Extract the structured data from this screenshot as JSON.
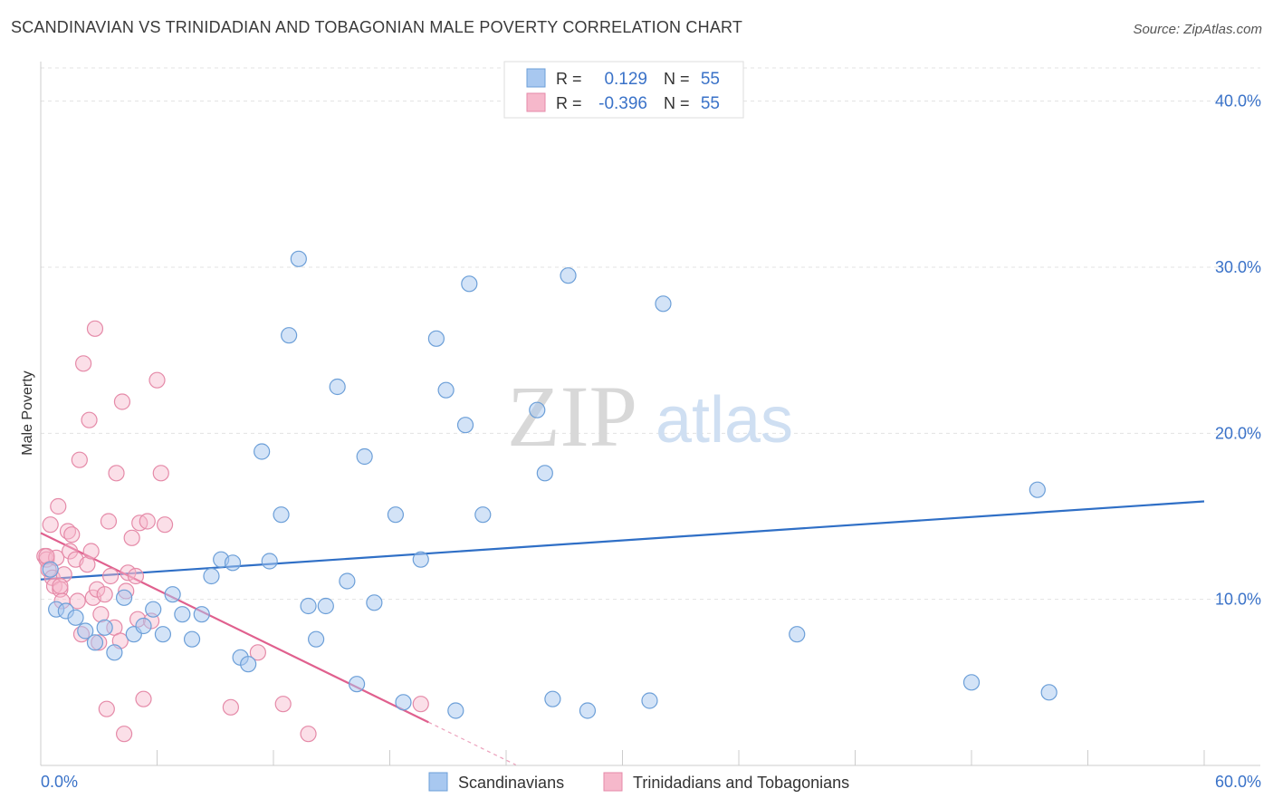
{
  "header": {
    "title": "SCANDINAVIAN VS TRINIDADIAN AND TOBAGONIAN MALE POVERTY CORRELATION CHART",
    "source": "Source: ZipAtlas.com"
  },
  "watermark": {
    "zip": "ZIP",
    "atlas": "atlas"
  },
  "legend_stats": [
    {
      "r_label": "R =",
      "r_value": "0.129",
      "n_label": "N =",
      "n_value": "55"
    },
    {
      "r_label": "R =",
      "r_value": "-0.396",
      "n_label": "N =",
      "n_value": "55"
    }
  ],
  "colors": {
    "blue_fill": "#a8c8f0",
    "blue_stroke": "#6c9fd8",
    "blue_line": "#2f6fc6",
    "pink_fill": "#f6b8cb",
    "pink_stroke": "#e58aa8",
    "pink_line": "#e0608e",
    "value_text": "#3a72c8"
  },
  "chart_data": {
    "type": "scatter",
    "ylabel": "Male Poverty",
    "xlim": [
      0,
      60
    ],
    "ylim": [
      0,
      42
    ],
    "x_tick_labels": [
      "0.0%",
      "60.0%"
    ],
    "y_ticks": [
      10,
      20,
      30,
      40
    ],
    "y_tick_labels": [
      "10.0%",
      "20.0%",
      "30.0%",
      "40.0%"
    ],
    "grid": true,
    "legend_position": "bottom",
    "series": [
      {
        "name": "Scandinavians",
        "color": "#a8c8f0",
        "trend": {
          "x": [
            0,
            60
          ],
          "y": [
            11.2,
            15.9
          ]
        },
        "points": [
          [
            0.5,
            11.8
          ],
          [
            0.8,
            9.4
          ],
          [
            1.3,
            9.3
          ],
          [
            1.8,
            8.9
          ],
          [
            2.3,
            8.1
          ],
          [
            2.8,
            7.4
          ],
          [
            3.3,
            8.3
          ],
          [
            3.8,
            6.8
          ],
          [
            4.3,
            10.1
          ],
          [
            4.8,
            7.9
          ],
          [
            5.3,
            8.4
          ],
          [
            5.8,
            9.4
          ],
          [
            6.3,
            7.9
          ],
          [
            6.8,
            10.3
          ],
          [
            7.3,
            9.1
          ],
          [
            7.8,
            7.6
          ],
          [
            8.3,
            9.1
          ],
          [
            8.8,
            11.4
          ],
          [
            9.3,
            12.4
          ],
          [
            9.9,
            12.2
          ],
          [
            10.3,
            6.5
          ],
          [
            10.7,
            6.1
          ],
          [
            11.4,
            18.9
          ],
          [
            11.8,
            12.3
          ],
          [
            12.4,
            15.1
          ],
          [
            12.8,
            25.9
          ],
          [
            13.3,
            30.5
          ],
          [
            13.8,
            9.6
          ],
          [
            14.2,
            7.6
          ],
          [
            14.7,
            9.6
          ],
          [
            15.3,
            22.8
          ],
          [
            15.8,
            11.1
          ],
          [
            16.3,
            4.9
          ],
          [
            16.7,
            18.6
          ],
          [
            17.2,
            9.8
          ],
          [
            18.3,
            15.1
          ],
          [
            18.7,
            3.8
          ],
          [
            19.6,
            12.4
          ],
          [
            20.4,
            25.7
          ],
          [
            20.9,
            22.6
          ],
          [
            21.4,
            3.3
          ],
          [
            21.9,
            20.5
          ],
          [
            22.1,
            29.0
          ],
          [
            22.8,
            15.1
          ],
          [
            25.6,
            21.4
          ],
          [
            26.0,
            17.6
          ],
          [
            26.4,
            4.0
          ],
          [
            27.2,
            29.5
          ],
          [
            28.2,
            3.3
          ],
          [
            31.4,
            3.9
          ],
          [
            32.1,
            27.8
          ],
          [
            39.0,
            7.9
          ],
          [
            48.0,
            5.0
          ],
          [
            51.4,
            16.6
          ],
          [
            52.0,
            4.4
          ]
        ]
      },
      {
        "name": "Trinidadians and Tobagonians",
        "color": "#f6b8cb",
        "trend": {
          "x": [
            0,
            20
          ],
          "y": [
            14.0,
            2.6
          ]
        },
        "points": [
          [
            0.2,
            12.6
          ],
          [
            0.3,
            12.4
          ],
          [
            0.4,
            11.8
          ],
          [
            0.5,
            14.5
          ],
          [
            0.6,
            11.3
          ],
          [
            0.7,
            10.8
          ],
          [
            0.8,
            12.5
          ],
          [
            0.9,
            15.6
          ],
          [
            1.0,
            10.6
          ],
          [
            1.1,
            9.9
          ],
          [
            1.2,
            11.5
          ],
          [
            1.4,
            14.1
          ],
          [
            1.5,
            12.9
          ],
          [
            1.6,
            13.9
          ],
          [
            1.8,
            12.4
          ],
          [
            1.9,
            9.9
          ],
          [
            2.0,
            18.4
          ],
          [
            2.1,
            7.9
          ],
          [
            2.2,
            24.2
          ],
          [
            2.4,
            12.1
          ],
          [
            2.5,
            20.8
          ],
          [
            2.6,
            12.9
          ],
          [
            2.7,
            10.1
          ],
          [
            2.8,
            26.3
          ],
          [
            2.9,
            10.6
          ],
          [
            3.0,
            7.4
          ],
          [
            3.1,
            9.1
          ],
          [
            3.3,
            10.3
          ],
          [
            3.4,
            3.4
          ],
          [
            3.5,
            14.7
          ],
          [
            3.6,
            11.4
          ],
          [
            3.8,
            8.3
          ],
          [
            3.9,
            17.6
          ],
          [
            4.1,
            7.5
          ],
          [
            4.2,
            21.9
          ],
          [
            4.3,
            1.9
          ],
          [
            4.4,
            10.5
          ],
          [
            4.5,
            11.6
          ],
          [
            4.7,
            13.7
          ],
          [
            4.9,
            11.4
          ],
          [
            5.0,
            8.8
          ],
          [
            5.1,
            14.6
          ],
          [
            5.3,
            4.0
          ],
          [
            5.5,
            14.7
          ],
          [
            5.7,
            8.7
          ],
          [
            6.0,
            23.2
          ],
          [
            6.2,
            17.6
          ],
          [
            6.4,
            14.5
          ],
          [
            9.8,
            3.5
          ],
          [
            11.2,
            6.8
          ],
          [
            12.5,
            3.7
          ],
          [
            13.8,
            1.9
          ],
          [
            19.6,
            3.7
          ],
          [
            0.3,
            12.6
          ],
          [
            1.0,
            10.8
          ]
        ]
      }
    ]
  },
  "bottom_legend": [
    {
      "label": "Scandinavians"
    },
    {
      "label": "Trinidadians and Tobagonians"
    }
  ]
}
